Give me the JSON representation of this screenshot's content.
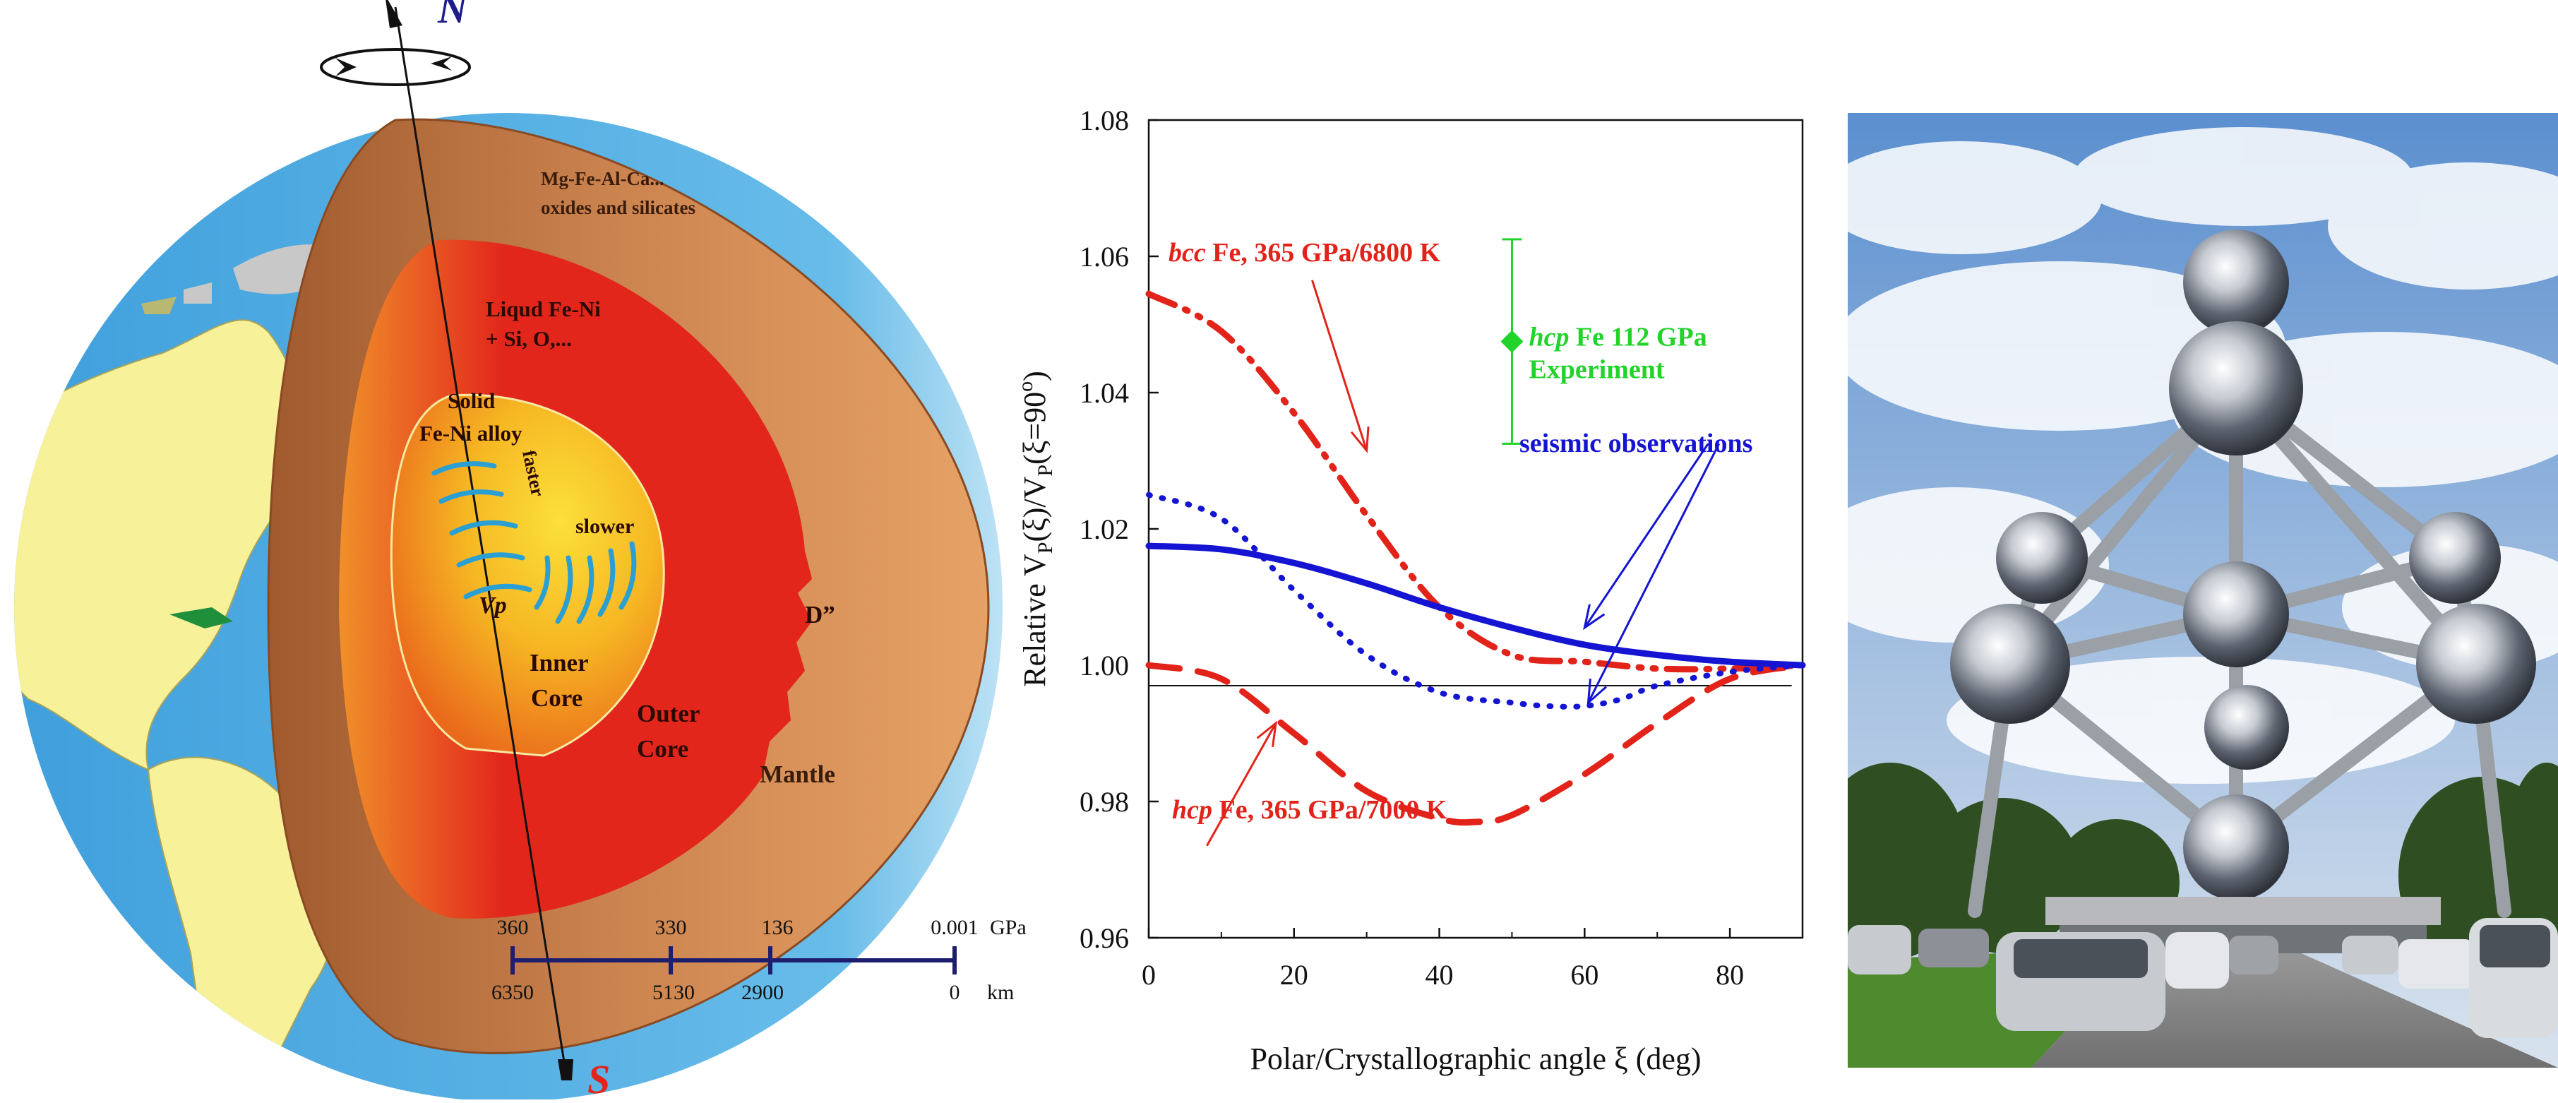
{
  "earth": {
    "north_label": "N",
    "south_label": "S",
    "mantle_label_1": "Mg-Fe-Al-Ca...",
    "mantle_label_2": "oxides and silicates",
    "liquid_label_1": "Liqud Fe-Ni",
    "liquid_label_2": "+ Si, O,...",
    "solid_label_1": "Solid",
    "solid_label_2": "Fe-Ni alloy",
    "faster_label": "faster",
    "slower_label": "slower",
    "vp_label": "Vp",
    "inner_core_1": "Inner",
    "inner_core_2": "Core",
    "outer_core_1": "Outer",
    "outer_core_2": "Core",
    "d_double_prime": "D”",
    "mantle_label": "Mantle",
    "scale": {
      "pressure_values": [
        "360",
        "330",
        "136",
        "0.001"
      ],
      "pressure_unit": "GPa",
      "depth_values": [
        "6350",
        "5130",
        "2900",
        "0"
      ],
      "depth_unit": "km"
    },
    "colors": {
      "ocean": "#4aa8e0",
      "land": "#f7f29a",
      "crust": "#c98552",
      "outer_core": "#e2261b",
      "inner_core": "#f8d31f",
      "waves": "#2a9fd4",
      "scale": "#1e1e6e"
    }
  },
  "chart_data": {
    "type": "line",
    "xlabel": "Polar/Crystallographic angle ξ (deg)",
    "ylabel_parts": [
      "Relative V",
      "P",
      "(ξ)/V",
      "P",
      "(ξ=90",
      "o",
      ")"
    ],
    "xlim": [
      0,
      90
    ],
    "ylim": [
      0.96,
      1.08
    ],
    "xticks": [
      0,
      20,
      40,
      60,
      80
    ],
    "yticks": [
      0.96,
      0.98,
      1.0,
      1.02,
      1.04,
      1.06,
      1.08
    ],
    "grid": false,
    "reference_line_y": 0.997,
    "series": [
      {
        "name_italic": "bcc",
        "name_rest": " Fe, 365 GPa/6800 K",
        "color": "#e2231a",
        "dash": "dashdotdot",
        "x": [
          0,
          10,
          20,
          30,
          40,
          50,
          60,
          70,
          80,
          90
        ],
        "y": [
          1.0545,
          1.049,
          1.037,
          1.022,
          1.0085,
          1.0015,
          1.0005,
          0.9995,
          0.9995,
          1.0
        ]
      },
      {
        "name_italic": "hcp",
        "name_rest": " Fe, 365 GPa/7000 K",
        "color": "#e2231a",
        "dash": "longdash",
        "x": [
          0,
          10,
          20,
          30,
          40,
          45,
          50,
          60,
          70,
          80,
          90
        ],
        "y": [
          1.0,
          0.998,
          0.99,
          0.9815,
          0.9775,
          0.977,
          0.978,
          0.984,
          0.9915,
          0.998,
          1.0
        ]
      },
      {
        "name": "seismic observations",
        "color": "#1414d2",
        "dash": "solid",
        "x": [
          0,
          10,
          20,
          30,
          40,
          50,
          60,
          70,
          80,
          90
        ],
        "y": [
          1.0175,
          1.017,
          1.015,
          1.012,
          1.0085,
          1.0055,
          1.003,
          1.0015,
          1.0005,
          1.0
        ]
      },
      {
        "name": "seismic observations (dotted)",
        "color": "#1414d2",
        "dash": "dotted",
        "x": [
          0,
          10,
          20,
          30,
          40,
          50,
          55,
          60,
          65,
          70,
          80,
          90
        ],
        "y": [
          1.025,
          1.0215,
          1.011,
          1.0015,
          0.996,
          0.9945,
          0.994,
          0.994,
          0.995,
          0.997,
          0.999,
          1.0
        ]
      }
    ],
    "experiment": {
      "name_italic": "hcp",
      "name_rest": " Fe 112 GPa",
      "line2": "Experiment",
      "x": 50,
      "y": 1.0475,
      "ylow": 1.0325,
      "yhigh": 1.0625,
      "color": "#22d32a"
    },
    "annotations": [
      {
        "text_italic": "bcc",
        "text_rest": " Fe, 365 GPa/6800 K",
        "color": "#e2231a"
      },
      {
        "text_italic": "hcp",
        "text_rest": " Fe, 365 GPa/7000 K",
        "color": "#e2231a"
      },
      {
        "text": "seismic observations",
        "color": "#1414d2"
      }
    ]
  }
}
